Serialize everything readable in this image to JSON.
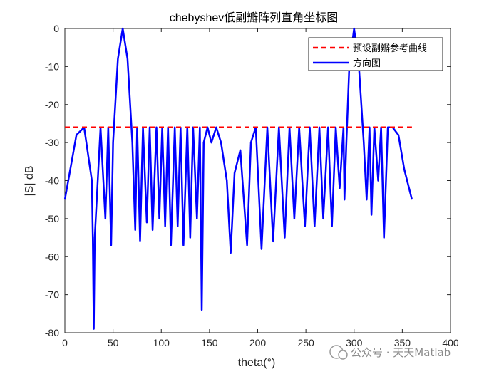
{
  "chart_data": {
    "type": "line",
    "title": "chebyshev低副瓣阵列直角坐标图",
    "xlabel": "theta(°)",
    "ylabel": "|S| dB",
    "xlim": [
      0,
      400
    ],
    "ylim": [
      -80,
      0
    ],
    "xticks": [
      "0",
      "50",
      "100",
      "150",
      "200",
      "250",
      "300",
      "350",
      "400"
    ],
    "yticks": [
      "0",
      "-10",
      "-20",
      "-30",
      "-40",
      "-50",
      "-60",
      "-70",
      "-80"
    ],
    "grid": false,
    "legend_position": "top-right",
    "series": [
      {
        "name": "预设副瓣参考曲线",
        "color": "#ff0000",
        "style": "dashed",
        "x": [
          0,
          360
        ],
        "y": [
          -26,
          -26
        ]
      },
      {
        "name": "方向图",
        "color": "#0000ff",
        "style": "solid",
        "x": [
          0,
          12,
          20,
          28,
          29,
          30,
          31,
          37,
          42,
          45,
          48,
          50,
          55,
          60,
          65,
          70,
          73,
          75,
          78,
          81,
          85,
          88,
          91,
          95,
          98,
          101,
          104,
          107,
          110,
          114,
          117,
          120,
          123,
          127,
          130,
          133,
          137,
          140,
          142,
          144,
          148,
          152,
          157,
          162,
          168,
          172,
          176,
          182,
          189,
          193,
          198,
          204,
          210,
          216,
          222,
          228,
          233,
          238,
          243,
          249,
          254,
          259,
          264,
          268,
          273,
          277,
          281,
          285,
          289,
          290,
          292,
          295,
          300,
          305,
          310,
          313,
          316,
          318,
          321,
          325,
          328,
          331,
          335,
          340,
          346,
          352,
          360
        ],
        "y": [
          -45,
          -28,
          -26,
          -40,
          -55,
          -79,
          -55,
          -26,
          -50,
          -26,
          -57,
          -30,
          -8,
          0,
          -8,
          -30,
          -53,
          -26,
          -56,
          -26,
          -51,
          -26,
          -53,
          -26,
          -50,
          -26,
          -52,
          -26,
          -57,
          -26,
          -52,
          -26,
          -57,
          -26,
          -55,
          -26,
          -50,
          -26,
          -74,
          -30,
          -26,
          -30,
          -26,
          -30,
          -40,
          -59,
          -38,
          -32,
          -57,
          -30,
          -26,
          -58,
          -26,
          -56,
          -26,
          -55,
          -26,
          -50,
          -26,
          -52,
          -26,
          -52,
          -26,
          -50,
          -26,
          -52,
          -26,
          -42,
          -26,
          -45,
          -30,
          -10,
          0,
          -10,
          -30,
          -45,
          -26,
          -49,
          -26,
          -40,
          -26,
          -55,
          -26,
          -26,
          -28,
          -37,
          -45
        ]
      }
    ]
  },
  "watermark": "公众号 · 天天Matlab"
}
